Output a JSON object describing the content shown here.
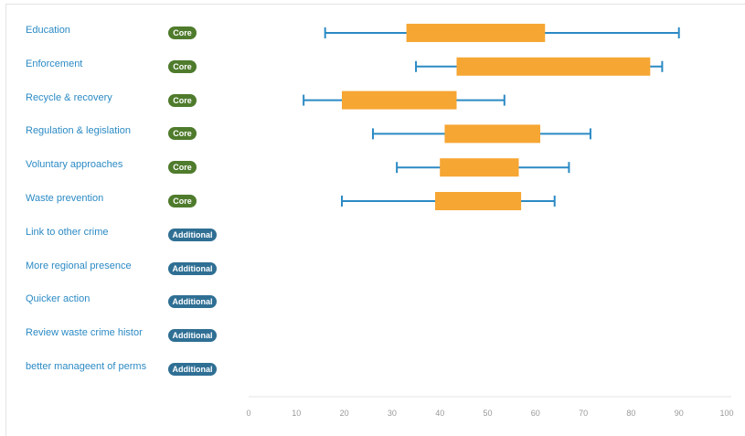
{
  "chart_data": {
    "type": "boxplot",
    "orientation": "horizontal",
    "rows": [
      {
        "label": "Education",
        "badge": "Core",
        "whisker_min": 16,
        "q1": 33,
        "q3": 62,
        "whisker_max": 90
      },
      {
        "label": "Enforcement",
        "badge": "Core",
        "whisker_min": 35,
        "q1": 43.5,
        "q3": 84,
        "whisker_max": 86.5
      },
      {
        "label": "Recycle & recovery",
        "badge": "Core",
        "whisker_min": 11.5,
        "q1": 19.5,
        "q3": 43.5,
        "whisker_max": 53.5
      },
      {
        "label": "Regulation & legislation",
        "badge": "Core",
        "whisker_min": 26,
        "q1": 41,
        "q3": 61,
        "whisker_max": 71.5
      },
      {
        "label": "Voluntary approaches",
        "badge": "Core",
        "whisker_min": 31,
        "q1": 40,
        "q3": 56.5,
        "whisker_max": 67
      },
      {
        "label": "Waste prevention",
        "badge": "Core",
        "whisker_min": 19.5,
        "q1": 39,
        "q3": 57,
        "whisker_max": 64
      },
      {
        "label": "Link to other crime",
        "badge": "Additional"
      },
      {
        "label": "More regional presence",
        "badge": "Additional"
      },
      {
        "label": "Quicker action",
        "badge": "Additional"
      },
      {
        "label": "Review waste crime histor",
        "badge": "Additional"
      },
      {
        "label": "better manageent of perms",
        "badge": "Additional"
      }
    ],
    "xlim": [
      0,
      100
    ],
    "xticks": [
      "0",
      "10",
      "20",
      "30",
      "40",
      "50",
      "60",
      "70",
      "80",
      "90",
      "100"
    ],
    "title": "",
    "xlabel": "",
    "ylabel": "",
    "colors": {
      "box": "#f6a633",
      "whisker": "#2b8ac4",
      "label": "#2b8ac4",
      "core_badge": "#4f7b2c",
      "additional_badge": "#2f6f94",
      "tick_label": "#9a9a9a",
      "axis_line": "#e3e3e3"
    }
  }
}
